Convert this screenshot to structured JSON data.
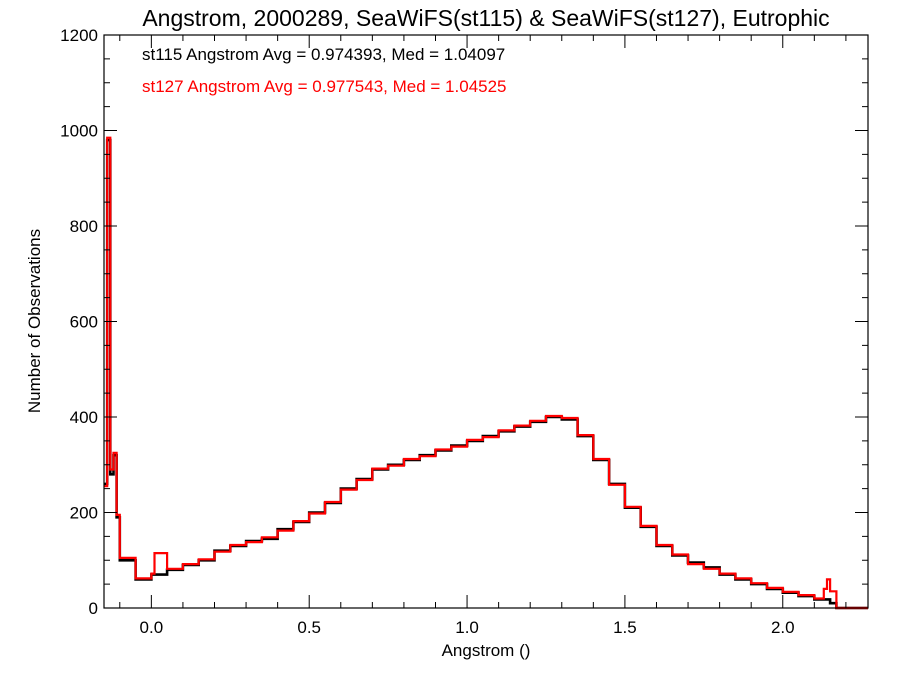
{
  "chart_data": {
    "type": "line",
    "title": "Angstrom, 2000289, SeaWiFS(st115) & SeaWiFS(st127), Eutrophic",
    "xlabel": "Angstrom ()",
    "ylabel": "Number of Observations",
    "xlim": [
      -0.15,
      2.27
    ],
    "ylim": [
      0,
      1200
    ],
    "xticks": [
      0.0,
      0.5,
      1.0,
      1.5,
      2.0
    ],
    "xtick_labels": [
      "0.0",
      "0.5",
      "1.0",
      "1.5",
      "2.0"
    ],
    "yticks": [
      0,
      200,
      400,
      600,
      800,
      1000,
      1200
    ],
    "ytick_labels": [
      "0",
      "200",
      "400",
      "600",
      "800",
      "1000",
      "1200"
    ],
    "grid": false,
    "step": true,
    "series": [
      {
        "name": "st115",
        "color": "#000000",
        "x": [
          -0.15,
          -0.14,
          -0.13,
          -0.12,
          -0.11,
          -0.1,
          -0.05,
          0.0,
          0.05,
          0.1,
          0.15,
          0.2,
          0.25,
          0.3,
          0.35,
          0.4,
          0.45,
          0.5,
          0.55,
          0.6,
          0.65,
          0.7,
          0.75,
          0.8,
          0.85,
          0.9,
          0.95,
          1.0,
          1.05,
          1.1,
          1.15,
          1.2,
          1.25,
          1.3,
          1.35,
          1.4,
          1.45,
          1.5,
          1.55,
          1.6,
          1.65,
          1.7,
          1.75,
          1.8,
          1.85,
          1.9,
          1.95,
          2.0,
          2.05,
          2.1,
          2.15,
          2.17,
          2.2,
          2.27
        ],
        "y": [
          260,
          980,
          280,
          320,
          190,
          100,
          60,
          70,
          80,
          90,
          100,
          120,
          130,
          140,
          145,
          165,
          180,
          200,
          220,
          250,
          270,
          290,
          300,
          310,
          320,
          330,
          340,
          350,
          360,
          370,
          380,
          390,
          400,
          395,
          360,
          310,
          260,
          210,
          170,
          130,
          110,
          95,
          85,
          70,
          60,
          50,
          40,
          32,
          25,
          18,
          10,
          0,
          0,
          0
        ]
      },
      {
        "name": "st127",
        "color": "#ff0000",
        "x": [
          -0.15,
          -0.14,
          -0.13,
          -0.12,
          -0.11,
          -0.1,
          -0.05,
          0.0,
          0.01,
          0.05,
          0.1,
          0.15,
          0.2,
          0.25,
          0.3,
          0.35,
          0.4,
          0.45,
          0.5,
          0.55,
          0.6,
          0.65,
          0.7,
          0.75,
          0.8,
          0.85,
          0.9,
          0.95,
          1.0,
          1.05,
          1.1,
          1.15,
          1.2,
          1.25,
          1.3,
          1.35,
          1.4,
          1.45,
          1.5,
          1.55,
          1.6,
          1.65,
          1.7,
          1.75,
          1.8,
          1.85,
          1.9,
          1.95,
          2.0,
          2.05,
          2.1,
          2.13,
          2.14,
          2.15,
          2.17,
          2.2,
          2.27
        ],
        "y": [
          255,
          985,
          290,
          325,
          195,
          105,
          62,
          72,
          115,
          82,
          92,
          102,
          118,
          132,
          138,
          148,
          162,
          182,
          198,
          222,
          248,
          268,
          292,
          298,
          312,
          318,
          332,
          338,
          352,
          358,
          372,
          382,
          392,
          402,
          398,
          362,
          312,
          258,
          212,
          172,
          132,
          112,
          92,
          82,
          72,
          62,
          52,
          42,
          34,
          27,
          20,
          40,
          60,
          35,
          0,
          0,
          0
        ]
      }
    ],
    "annotations": [
      {
        "text": "st115 Angstrom Avg = 0.974393, Med = 1.04097",
        "color": "#000000"
      },
      {
        "text": "st127 Angstrom Avg = 0.977543, Med = 1.04525",
        "color": "#ff0000"
      }
    ]
  }
}
